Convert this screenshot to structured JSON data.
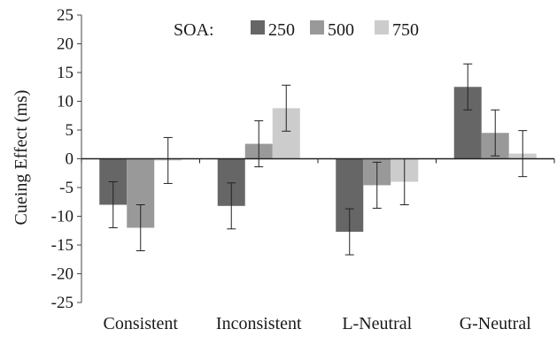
{
  "chart_data": {
    "type": "bar",
    "title": "",
    "xlabel": "",
    "ylabel": "Cueing Effect (ms)",
    "ylim": [
      -25,
      25
    ],
    "yticks": [
      25,
      20,
      15,
      10,
      5,
      0,
      -5,
      -10,
      -15,
      -20,
      -25
    ],
    "grid": false,
    "legend": {
      "placement": "top-center",
      "title": "SOA:"
    },
    "categories": [
      "Consistent",
      "Inconsistent",
      "L-Neutral",
      "G-Neutral"
    ],
    "series": [
      {
        "name": "250",
        "color": "#666666",
        "values": [
          -8.0,
          -8.2,
          -12.7,
          12.5
        ],
        "errors": [
          4.0,
          4.0,
          4.0,
          4.0
        ]
      },
      {
        "name": "500",
        "color": "#999999",
        "values": [
          -12.0,
          2.6,
          -4.6,
          4.5
        ],
        "errors": [
          4.0,
          4.0,
          4.0,
          4.0
        ]
      },
      {
        "name": "750",
        "color": "#cccccc",
        "values": [
          -0.3,
          8.8,
          -4.0,
          0.9
        ],
        "errors": [
          4.0,
          4.0,
          4.0,
          4.0
        ]
      }
    ]
  }
}
